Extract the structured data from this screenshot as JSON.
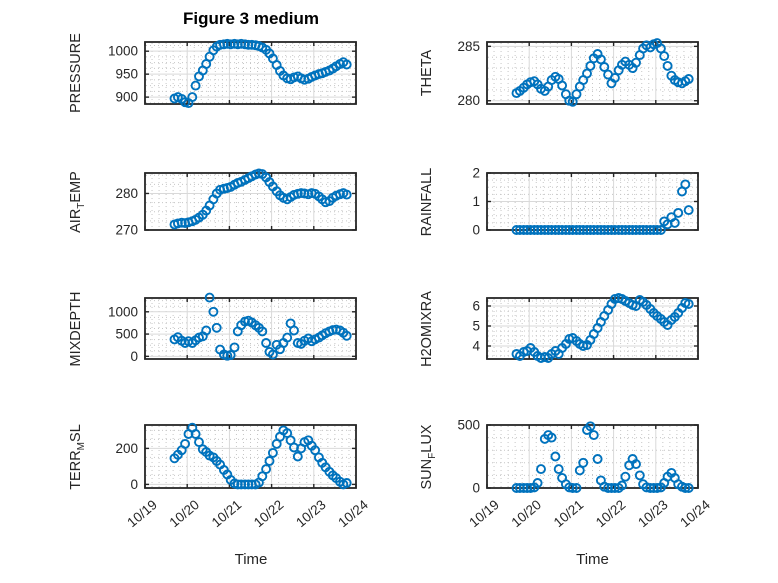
{
  "title": "Figure 3 medium",
  "xlabel": "Time",
  "colors": {
    "marker": "#0072BD",
    "axis": "#262626",
    "grid_major": "#d9d9d9",
    "grid_minor": "#c6c6c6",
    "title": "#000000",
    "background": "#ffffff"
  },
  "chart_data": {
    "type": "scatter",
    "marker": "open-circle",
    "grid": "major-solid-minor-dotted",
    "x_unit": "day-of-October",
    "x_range_days": [
      19,
      24
    ],
    "x_ticks": [
      "10/19",
      "10/20",
      "10/21",
      "10/22",
      "10/23",
      "10/24"
    ],
    "t": [
      19.7,
      19.78,
      19.87,
      19.95,
      20.03,
      20.12,
      20.2,
      20.28,
      20.37,
      20.45,
      20.53,
      20.62,
      20.7,
      20.78,
      20.87,
      20.95,
      21.03,
      21.12,
      21.2,
      21.28,
      21.37,
      21.45,
      21.53,
      21.62,
      21.7,
      21.78,
      21.87,
      21.95,
      22.03,
      22.12,
      22.2,
      22.28,
      22.37,
      22.45,
      22.53,
      22.62,
      22.7,
      22.78,
      22.87,
      22.95,
      23.03,
      23.12,
      23.2,
      23.28,
      23.37,
      23.45,
      23.53,
      23.62,
      23.7,
      23.78
    ],
    "subplots": [
      {
        "id": "pressure",
        "row": 0,
        "col": 0,
        "label": [
          {
            "t": "PRESSURE"
          }
        ],
        "ylim": [
          885,
          1020
        ],
        "yticks": [
          900,
          950,
          1000
        ],
        "yminor": 12.5,
        "values": [
          897,
          900,
          896,
          889,
          887,
          900,
          925,
          945,
          958,
          972,
          988,
          1002,
          1010,
          1014,
          1015,
          1016,
          1015,
          1016,
          1015,
          1016,
          1015,
          1014,
          1014,
          1013,
          1011,
          1008,
          1003,
          995,
          984,
          970,
          957,
          947,
          941,
          939,
          943,
          945,
          941,
          938,
          940,
          944,
          947,
          950,
          952,
          955,
          958,
          962,
          967,
          972,
          976,
          971
        ]
      },
      {
        "id": "theta",
        "row": 0,
        "col": 1,
        "label": [
          {
            "t": "THETA"
          }
        ],
        "ylim": [
          279.7,
          285.4
        ],
        "yticks": [
          280,
          285
        ],
        "yminor": 1,
        "values": [
          280.7,
          280.9,
          281.2,
          281.5,
          281.7,
          281.8,
          281.5,
          281.1,
          280.9,
          281.3,
          281.9,
          282.2,
          282.0,
          281.4,
          280.6,
          280.0,
          279.9,
          280.6,
          281.3,
          281.9,
          282.5,
          283.2,
          283.9,
          284.3,
          283.8,
          283.1,
          282.4,
          281.6,
          282.1,
          282.8,
          283.3,
          283.6,
          283.3,
          283.0,
          283.5,
          284.2,
          284.8,
          285.1,
          284.9,
          285.2,
          285.3,
          284.8,
          284.1,
          283.2,
          282.3,
          281.9,
          281.7,
          281.6,
          281.8,
          282.0
        ]
      },
      {
        "id": "air_temp",
        "row": 1,
        "col": 0,
        "label": [
          {
            "t": "AIR"
          },
          {
            "t": "T",
            "sub": true
          },
          {
            "t": "EMP"
          }
        ],
        "ylim": [
          270,
          285.6
        ],
        "yticks": [
          270,
          280
        ],
        "yminor": 2.5,
        "values": [
          271.5,
          271.8,
          272.0,
          271.9,
          272.1,
          272.4,
          272.8,
          273.4,
          274.2,
          275.3,
          276.7,
          278.4,
          280.0,
          281.0,
          281.3,
          281.5,
          281.8,
          282.4,
          282.9,
          283.2,
          283.7,
          284.2,
          284.7,
          285.2,
          285.5,
          285.3,
          284.4,
          283.1,
          281.9,
          280.6,
          279.5,
          278.8,
          278.4,
          279.0,
          279.6,
          279.9,
          280.1,
          280.0,
          279.8,
          280.1,
          279.9,
          279.2,
          278.4,
          277.6,
          277.9,
          278.8,
          279.4,
          279.8,
          280.1,
          279.7
        ]
      },
      {
        "id": "rainfall",
        "row": 1,
        "col": 1,
        "label": [
          {
            "t": "RAINFALL"
          }
        ],
        "ylim": [
          0,
          2
        ],
        "yticks": [
          0,
          1,
          2
        ],
        "yminor": 0.25,
        "values": [
          0,
          0,
          0,
          0,
          0,
          0,
          0,
          0,
          0,
          0,
          0,
          0,
          0,
          0,
          0,
          0,
          0,
          0,
          0,
          0,
          0,
          0,
          0,
          0,
          0,
          0,
          0,
          0,
          0,
          0,
          0,
          0,
          0,
          0,
          0,
          0,
          0,
          0,
          0,
          0,
          0,
          0,
          0.3,
          0.2,
          0.45,
          0.25,
          0.6,
          1.35,
          1.6,
          0.7
        ]
      },
      {
        "id": "mixdepth",
        "row": 2,
        "col": 0,
        "label": [
          {
            "t": "MIXDEPTH"
          }
        ],
        "ylim": [
          -60,
          1310
        ],
        "yticks": [
          0,
          500,
          1000
        ],
        "yminor": 125,
        "values": [
          380,
          430,
          350,
          300,
          340,
          300,
          360,
          420,
          450,
          580,
          1320,
          1000,
          640,
          150,
          40,
          15,
          30,
          200,
          560,
          700,
          780,
          800,
          760,
          700,
          640,
          560,
          300,
          100,
          40,
          260,
          160,
          300,
          420,
          740,
          580,
          300,
          280,
          350,
          400,
          340,
          380,
          420,
          470,
          520,
          560,
          590,
          600,
          580,
          530,
          460
        ]
      },
      {
        "id": "h2omixra",
        "row": 2,
        "col": 1,
        "label": [
          {
            "t": "H2OMIXRA"
          }
        ],
        "ylim": [
          3.35,
          6.4
        ],
        "yticks": [
          4,
          5,
          6
        ],
        "yminor": 0.25,
        "values": [
          3.6,
          3.5,
          3.7,
          3.75,
          3.9,
          3.7,
          3.5,
          3.4,
          3.45,
          3.4,
          3.6,
          3.75,
          3.6,
          3.9,
          4.1,
          4.35,
          4.4,
          4.25,
          4.1,
          4.0,
          4.05,
          4.3,
          4.6,
          4.9,
          5.2,
          5.5,
          5.8,
          6.1,
          6.35,
          6.4,
          6.35,
          6.25,
          6.15,
          6.05,
          6.0,
          6.3,
          6.2,
          6.05,
          5.85,
          5.65,
          5.5,
          5.35,
          5.2,
          5.05,
          5.3,
          5.45,
          5.65,
          5.9,
          6.15,
          6.1
        ]
      },
      {
        "id": "terr_msl",
        "row": 3,
        "col": 0,
        "label": [
          {
            "t": "TERR"
          },
          {
            "t": "M",
            "sub": true
          },
          {
            "t": "SL"
          }
        ],
        "ylim": [
          -20,
          330
        ],
        "yticks": [
          0,
          200
        ],
        "yminor": 50,
        "values": [
          145,
          165,
          190,
          225,
          280,
          315,
          280,
          235,
          195,
          180,
          160,
          150,
          130,
          110,
          80,
          55,
          25,
          5,
          0,
          0,
          0,
          0,
          0,
          0,
          10,
          45,
          85,
          130,
          175,
          225,
          265,
          300,
          285,
          245,
          205,
          155,
          200,
          235,
          245,
          215,
          190,
          150,
          120,
          95,
          70,
          50,
          35,
          15,
          0,
          8
        ]
      },
      {
        "id": "sun_flux",
        "row": 3,
        "col": 1,
        "label": [
          {
            "t": "SUN"
          },
          {
            "t": "F",
            "sub": true
          },
          {
            "t": "LUX"
          }
        ],
        "ylim": [
          0,
          500
        ],
        "yticks": [
          0,
          500
        ],
        "yminor": 100,
        "values": [
          0,
          0,
          0,
          0,
          0,
          5,
          40,
          150,
          390,
          420,
          400,
          250,
          150,
          80,
          30,
          5,
          0,
          0,
          140,
          200,
          460,
          490,
          420,
          230,
          60,
          10,
          0,
          0,
          0,
          0,
          20,
          90,
          180,
          230,
          190,
          100,
          30,
          5,
          0,
          0,
          0,
          5,
          40,
          90,
          120,
          80,
          30,
          10,
          0,
          0
        ]
      }
    ]
  }
}
